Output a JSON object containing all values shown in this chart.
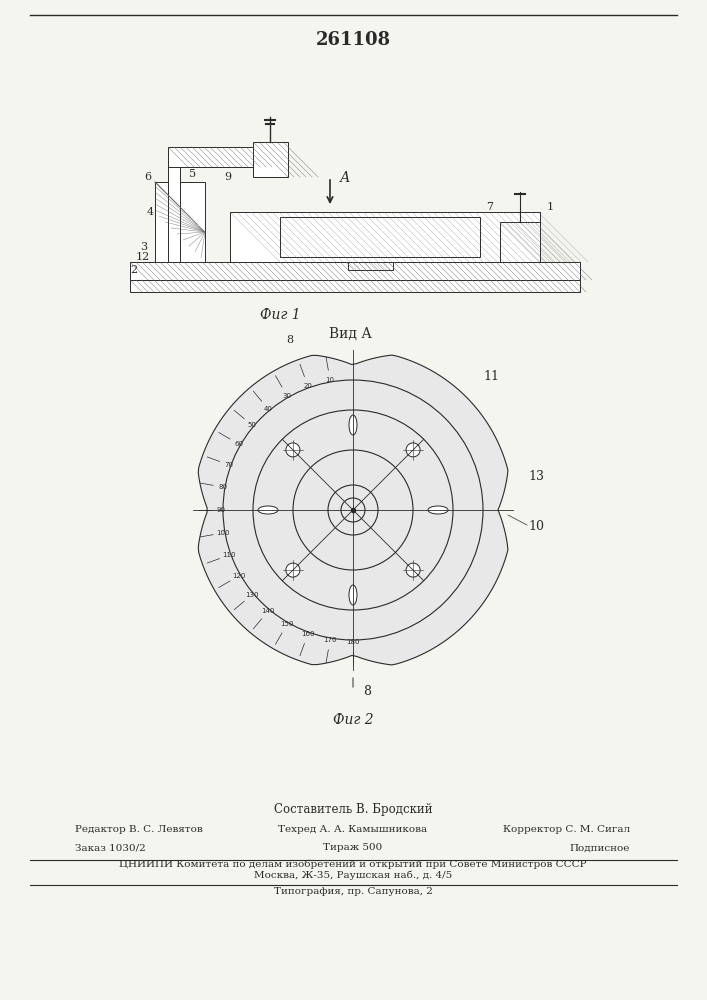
{
  "patent_number": "261108",
  "fig1_caption": "Фиг 1",
  "fig2_caption": "Фиг 2",
  "view_label": "Вид А",
  "arrow_label": "А",
  "labels_fig1": [
    "6",
    "5",
    "9",
    "4",
    "3",
    "12",
    "2",
    "7",
    "1"
  ],
  "labels_fig2": [
    "8",
    "10",
    "11",
    "13"
  ],
  "bottom_text_line1": "Составитель В. Бродский",
  "bottom_text_line2_left": "Редактор В. С. Левятов",
  "bottom_text_line2_mid": "Техред А. А. Камышникова",
  "bottom_text_line2_right": "Корректор С. М. Сигал",
  "bottom_text_line3_left": "Заказ 1030/2",
  "bottom_text_line3_mid": "Тираж 500",
  "bottom_text_line3_right": "Подписное",
  "bottom_text_line4": "ЦНИИПИ Комитета по делам изобретений и открытий при Совете Министров СССР",
  "bottom_text_line5": "Москва, Ж-35, Раушская наб., д. 4/5",
  "bottom_text_line6": "Типография, пр. Сапунова, 2",
  "bg_color": "#f5f5f0",
  "line_color": "#2a2a2a",
  "hatch_color": "#555555"
}
